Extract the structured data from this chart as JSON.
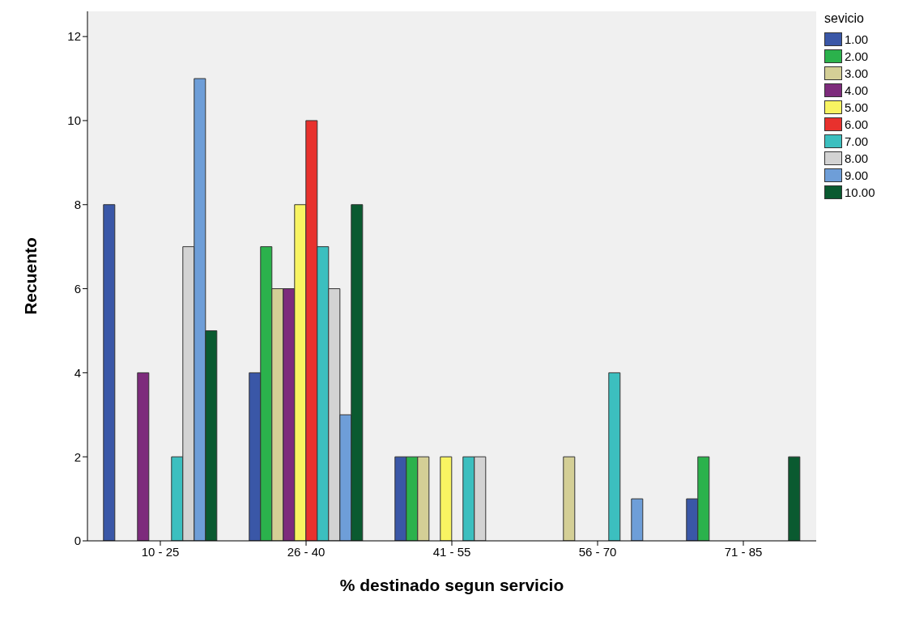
{
  "chart_data": {
    "type": "bar",
    "xlabel": "% destinado segun servicio",
    "ylabel": "Recuento",
    "legend_title": "sevicio",
    "categories": [
      "10 - 25",
      "26 - 40",
      "41 - 55",
      "56 - 70",
      "71 - 85"
    ],
    "series": [
      {
        "name": "1.00",
        "color": "#3a57a7",
        "values": [
          8,
          4,
          2,
          null,
          1
        ]
      },
      {
        "name": "2.00",
        "color": "#2bb24c",
        "values": [
          null,
          7,
          2,
          null,
          2
        ]
      },
      {
        "name": "3.00",
        "color": "#d4cf96",
        "values": [
          null,
          6,
          2,
          2,
          null
        ]
      },
      {
        "name": "4.00",
        "color": "#7d2b7c",
        "values": [
          4,
          6,
          null,
          null,
          null
        ]
      },
      {
        "name": "5.00",
        "color": "#f8f462",
        "values": [
          null,
          8,
          2,
          null,
          null
        ]
      },
      {
        "name": "6.00",
        "color": "#e8312d",
        "values": [
          null,
          10,
          null,
          null,
          null
        ]
      },
      {
        "name": "7.00",
        "color": "#3cbfbf",
        "values": [
          2,
          7,
          2,
          4,
          null
        ]
      },
      {
        "name": "8.00",
        "color": "#d3d3d3",
        "values": [
          7,
          6,
          2,
          null,
          null
        ]
      },
      {
        "name": "9.00",
        "color": "#6e9ed8",
        "values": [
          11,
          3,
          null,
          1,
          null
        ]
      },
      {
        "name": "10.00",
        "color": "#0a5a30",
        "values": [
          5,
          8,
          null,
          null,
          2
        ]
      }
    ],
    "ylim": [
      0,
      12.6
    ],
    "yticks": [
      0,
      2,
      4,
      6,
      8,
      10,
      12
    ],
    "grid": false,
    "legend": "right"
  }
}
